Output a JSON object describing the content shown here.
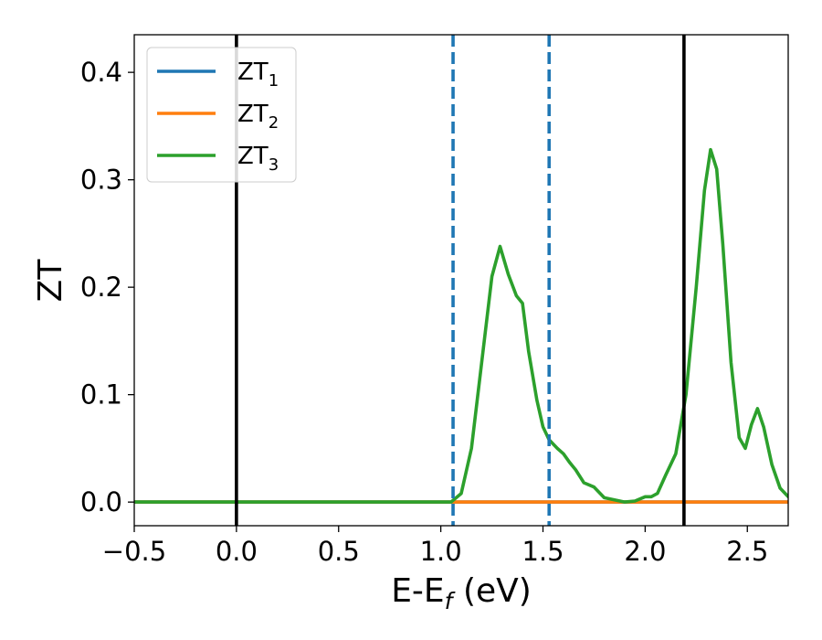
{
  "chart_data": {
    "type": "line",
    "xlabel": "E-E",
    "xlabel_sub": "f",
    "xlabel_unit": "(eV)",
    "ylabel": "ZT",
    "xlim": [
      -0.5,
      2.7
    ],
    "ylim": [
      -0.022,
      0.435
    ],
    "x_ticks": [
      -0.5,
      0.0,
      0.5,
      1.0,
      1.5,
      2.0,
      2.5
    ],
    "x_tick_labels": [
      "−0.5",
      "0.0",
      "0.5",
      "1.0",
      "1.5",
      "2.0",
      "2.5"
    ],
    "y_ticks": [
      0.0,
      0.1,
      0.2,
      0.3,
      0.4
    ],
    "y_tick_labels": [
      "0.0",
      "0.1",
      "0.2",
      "0.3",
      "0.4"
    ],
    "grid": false,
    "legend_position": "top-left",
    "series": [
      {
        "name": "ZT",
        "name_sub": "1",
        "color": "#1f77b4",
        "x": [
          -0.5,
          2.7
        ],
        "y": [
          0.0,
          0.0
        ]
      },
      {
        "name": "ZT",
        "name_sub": "2",
        "color": "#ff7f0e",
        "x": [
          -0.5,
          2.7
        ],
        "y": [
          0.0,
          0.0
        ]
      },
      {
        "name": "ZT",
        "name_sub": "3",
        "color": "#2ca02c",
        "x": [
          -0.5,
          0.0,
          0.5,
          1.0,
          1.05,
          1.1,
          1.15,
          1.2,
          1.25,
          1.29,
          1.33,
          1.37,
          1.4,
          1.43,
          1.47,
          1.5,
          1.53,
          1.57,
          1.6,
          1.63,
          1.66,
          1.7,
          1.75,
          1.8,
          1.85,
          1.9,
          1.95,
          2.0,
          2.03,
          2.06,
          2.1,
          2.15,
          2.2,
          2.25,
          2.29,
          2.32,
          2.35,
          2.38,
          2.42,
          2.46,
          2.49,
          2.52,
          2.55,
          2.58,
          2.62,
          2.66,
          2.7
        ],
        "y": [
          0.0,
          0.0,
          0.0,
          0.0,
          0.0,
          0.008,
          0.05,
          0.13,
          0.21,
          0.238,
          0.212,
          0.192,
          0.185,
          0.14,
          0.095,
          0.07,
          0.058,
          0.05,
          0.045,
          0.037,
          0.03,
          0.018,
          0.014,
          0.004,
          0.002,
          0.0,
          0.001,
          0.005,
          0.005,
          0.008,
          0.025,
          0.045,
          0.1,
          0.2,
          0.29,
          0.328,
          0.31,
          0.24,
          0.13,
          0.06,
          0.05,
          0.072,
          0.087,
          0.07,
          0.035,
          0.013,
          0.005
        ]
      }
    ],
    "vertical_lines": [
      {
        "x": 0.0,
        "color": "#000000",
        "style": "solid"
      },
      {
        "x": 1.06,
        "color": "#1f77b4",
        "style": "dashed"
      },
      {
        "x": 1.53,
        "color": "#1f77b4",
        "style": "dashed"
      },
      {
        "x": 2.19,
        "color": "#000000",
        "style": "solid"
      }
    ]
  }
}
